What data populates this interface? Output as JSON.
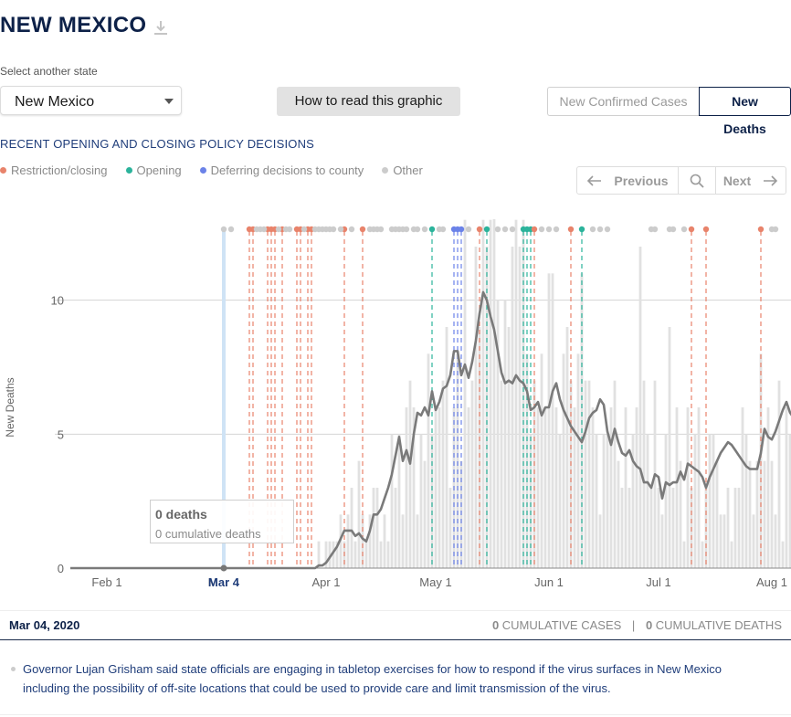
{
  "header": {
    "title": "NEW MEXICO",
    "download_icon": "download-icon"
  },
  "state_select": {
    "label": "Select another state",
    "value": "New Mexico"
  },
  "how_to_button": "How to read this graphic",
  "metric_toggle": {
    "option_cases": "New Confirmed Cases",
    "option_deaths": "New Deaths",
    "selected": "New Deaths"
  },
  "policy_section": {
    "title": "RECENT OPENING AND CLOSING POLICY DECISIONS",
    "legend": [
      {
        "label": "Restriction/closing",
        "color": "#e8836b"
      },
      {
        "label": "Opening",
        "color": "#2bb39b"
      },
      {
        "label": "Deferring decisions to county",
        "color": "#6b82e8"
      },
      {
        "label": "Other",
        "color": "#cccccc"
      }
    ]
  },
  "pager": {
    "previous": "Previous",
    "next": "Next",
    "search_icon": "search-icon"
  },
  "tooltip": {
    "main": "0 deaths",
    "sub": "0 cumulative deaths"
  },
  "footer": {
    "date": "Mar 04, 2020",
    "cases_value": "0",
    "cases_label": " CUMULATIVE CASES",
    "separator": "|",
    "deaths_value": "0",
    "deaths_label": " CUMULATIVE DEATHS"
  },
  "event_text": "Governor Lujan Grisham said state officials are engaging in tabletop exercises for how to respond if the virus surfaces in New Mexico including the possibility of off-site locations that could be used to provide care and limit transmission of the virus.",
  "chart_data": {
    "type": "bar",
    "start_date": "2020-01-22",
    "ylabel": "New Deaths",
    "ylim": [
      0,
      12
    ],
    "y_ticks": [
      0,
      5,
      10
    ],
    "x_ticks": [
      {
        "date": "2020-02-01",
        "label": "Feb 1"
      },
      {
        "date": "2020-03-01",
        "label": "M"
      },
      {
        "date": "2020-03-04",
        "label": "Mar 4"
      },
      {
        "date": "2020-04-01",
        "label": "Apr 1"
      },
      {
        "date": "2020-05-01",
        "label": "May 1"
      },
      {
        "date": "2020-06-01",
        "label": "Jun 1"
      },
      {
        "date": "2020-07-01",
        "label": "Jul 1"
      },
      {
        "date": "2020-08-01",
        "label": "Aug 1"
      }
    ],
    "highlight_date": "2020-03-04",
    "series": [
      {
        "name": "Daily new deaths",
        "values": [
          0,
          0,
          0,
          0,
          0,
          0,
          0,
          0,
          0,
          0,
          0,
          0,
          0,
          0,
          0,
          0,
          0,
          0,
          0,
          0,
          0,
          0,
          0,
          0,
          0,
          0,
          0,
          0,
          0,
          0,
          0,
          0,
          0,
          0,
          0,
          0,
          0,
          0,
          0,
          0,
          0,
          0,
          0,
          0,
          0,
          0,
          0,
          0,
          0,
          0,
          0,
          0,
          0,
          0,
          0,
          0,
          0,
          0,
          0,
          0,
          0,
          0,
          0,
          0,
          0,
          0,
          0,
          0,
          1,
          0,
          1,
          1,
          1,
          1,
          2,
          1,
          2,
          3,
          1,
          4,
          2,
          1,
          2,
          3,
          3,
          1,
          2,
          1,
          5,
          3,
          5,
          2,
          6,
          7,
          6,
          2,
          5,
          4,
          8,
          5,
          6,
          6,
          7,
          9,
          3,
          6,
          8,
          4,
          13,
          6,
          7,
          12,
          9,
          13,
          12,
          13,
          14,
          10,
          7,
          10,
          9,
          12,
          13,
          12,
          13,
          8,
          5,
          7,
          6,
          8,
          6,
          11,
          11,
          6,
          5,
          8,
          9,
          7,
          6,
          8,
          11,
          7,
          7,
          6,
          5,
          2,
          5,
          5,
          6,
          7,
          4,
          3,
          6,
          3,
          5,
          6,
          12,
          7,
          5,
          3,
          7,
          3,
          2,
          5,
          9,
          3,
          6,
          4,
          1,
          6,
          3,
          5,
          6,
          1,
          3,
          5,
          5,
          4,
          2,
          2,
          3,
          1,
          3,
          3,
          6,
          5,
          4,
          2,
          4,
          8,
          4,
          6,
          4,
          2,
          7,
          1,
          6,
          5,
          7,
          8,
          6,
          2,
          3,
          5,
          6,
          8,
          7,
          3,
          5,
          9,
          3,
          9,
          2
        ]
      },
      {
        "name": "7-day average",
        "values": [
          0,
          0,
          0,
          0,
          0,
          0,
          0,
          0,
          0,
          0,
          0,
          0,
          0,
          0,
          0,
          0,
          0,
          0,
          0,
          0,
          0,
          0,
          0,
          0,
          0,
          0,
          0,
          0,
          0,
          0,
          0,
          0,
          0,
          0,
          0,
          0,
          0,
          0,
          0,
          0,
          0,
          0,
          0,
          0,
          0,
          0,
          0,
          0,
          0,
          0,
          0,
          0,
          0,
          0,
          0,
          0,
          0,
          0,
          0,
          0,
          0,
          0,
          0,
          0,
          0,
          0,
          0,
          0,
          0.1,
          0.1,
          0.2,
          0.4,
          0.6,
          0.8,
          1.1,
          1.4,
          1.4,
          1.4,
          1.2,
          1.3,
          1.1,
          1.0,
          1.4,
          2.0,
          2.0,
          2.2,
          2.6,
          3.0,
          3.5,
          4.2,
          4.9,
          4.0,
          4.4,
          3.9,
          5.0,
          5.8,
          5.7,
          6.0,
          5.7,
          6.6,
          5.9,
          6.2,
          6.7,
          6.8,
          7.2,
          8.1,
          8.1,
          7.2,
          7.6,
          7.1,
          7.7,
          8.5,
          9.5,
          10.3,
          10.0,
          9.4,
          8.9,
          8.1,
          7.3,
          6.9,
          7.0,
          6.9,
          7.2,
          7.0,
          6.9,
          6.6,
          5.9,
          6.0,
          6.2,
          5.7,
          6.0,
          6.0,
          6.6,
          6.9,
          6.3,
          5.9,
          5.6,
          5.3,
          5.1,
          4.9,
          4.7,
          5.1,
          5.6,
          5.8,
          5.9,
          6.3,
          6.1,
          5.1,
          4.6,
          5.2,
          4.7,
          4.3,
          4.2,
          4.4,
          4.0,
          3.8,
          3.7,
          3.2,
          3.2,
          3.0,
          3.5,
          3.4,
          2.6,
          3.2,
          3.1,
          3.2,
          3.2,
          3.6,
          3.3,
          3.9,
          3.8,
          3.7,
          3.6,
          3.4,
          3.0,
          3.4,
          3.7,
          4.0,
          4.3,
          4.5,
          4.7,
          4.6,
          4.4,
          4.2,
          4.0,
          3.8,
          3.7,
          3.7,
          3.7,
          4.3,
          5.2,
          4.9,
          4.8,
          5.1,
          5.5,
          5.9,
          6.2,
          5.8,
          5.6,
          6.0,
          5.8,
          5.4,
          5.0,
          4.9,
          5.0
        ]
      }
    ],
    "policy_events": [
      {
        "date": "2020-03-11",
        "type": "restriction"
      },
      {
        "date": "2020-03-12",
        "type": "restriction"
      },
      {
        "date": "2020-03-16",
        "type": "restriction"
      },
      {
        "date": "2020-03-17",
        "type": "restriction"
      },
      {
        "date": "2020-03-18",
        "type": "restriction"
      },
      {
        "date": "2020-03-20",
        "type": "restriction"
      },
      {
        "date": "2020-03-24",
        "type": "restriction"
      },
      {
        "date": "2020-03-25",
        "type": "restriction"
      },
      {
        "date": "2020-03-27",
        "type": "restriction"
      },
      {
        "date": "2020-03-28",
        "type": "restriction"
      },
      {
        "date": "2020-04-06",
        "type": "restriction"
      },
      {
        "date": "2020-04-11",
        "type": "restriction"
      },
      {
        "date": "2020-04-30",
        "type": "opening"
      },
      {
        "date": "2020-05-06",
        "type": "county"
      },
      {
        "date": "2020-05-07",
        "type": "county"
      },
      {
        "date": "2020-05-08",
        "type": "county"
      },
      {
        "date": "2020-05-13",
        "type": "restriction"
      },
      {
        "date": "2020-05-15",
        "type": "opening"
      },
      {
        "date": "2020-05-25",
        "type": "opening"
      },
      {
        "date": "2020-05-26",
        "type": "opening"
      },
      {
        "date": "2020-05-27",
        "type": "opening"
      },
      {
        "date": "2020-05-28",
        "type": "restriction"
      },
      {
        "date": "2020-06-07",
        "type": "restriction"
      },
      {
        "date": "2020-06-10",
        "type": "opening"
      },
      {
        "date": "2020-07-10",
        "type": "restriction"
      },
      {
        "date": "2020-07-14",
        "type": "restriction"
      },
      {
        "date": "2020-07-29",
        "type": "restriction"
      }
    ],
    "other_events": [
      "2020-03-04",
      "2020-03-06",
      "2020-03-13",
      "2020-03-14",
      "2020-03-15",
      "2020-03-19",
      "2020-03-21",
      "2020-03-22",
      "2020-03-26",
      "2020-03-29",
      "2020-03-30",
      "2020-03-31",
      "2020-04-01",
      "2020-04-02",
      "2020-04-03",
      "2020-04-05",
      "2020-04-08",
      "2020-04-13",
      "2020-04-14",
      "2020-04-15",
      "2020-04-16",
      "2020-04-19",
      "2020-04-20",
      "2020-04-21",
      "2020-04-22",
      "2020-04-23",
      "2020-04-25",
      "2020-04-26",
      "2020-04-28",
      "2020-05-02",
      "2020-05-03",
      "2020-05-10",
      "2020-05-18",
      "2020-05-20",
      "2020-05-22",
      "2020-05-30",
      "2020-06-01",
      "2020-06-03",
      "2020-06-13",
      "2020-06-15",
      "2020-06-17",
      "2020-06-29",
      "2020-06-30",
      "2020-07-04",
      "2020-07-05",
      "2020-07-08",
      "2020-08-01",
      "2020-08-02"
    ]
  }
}
